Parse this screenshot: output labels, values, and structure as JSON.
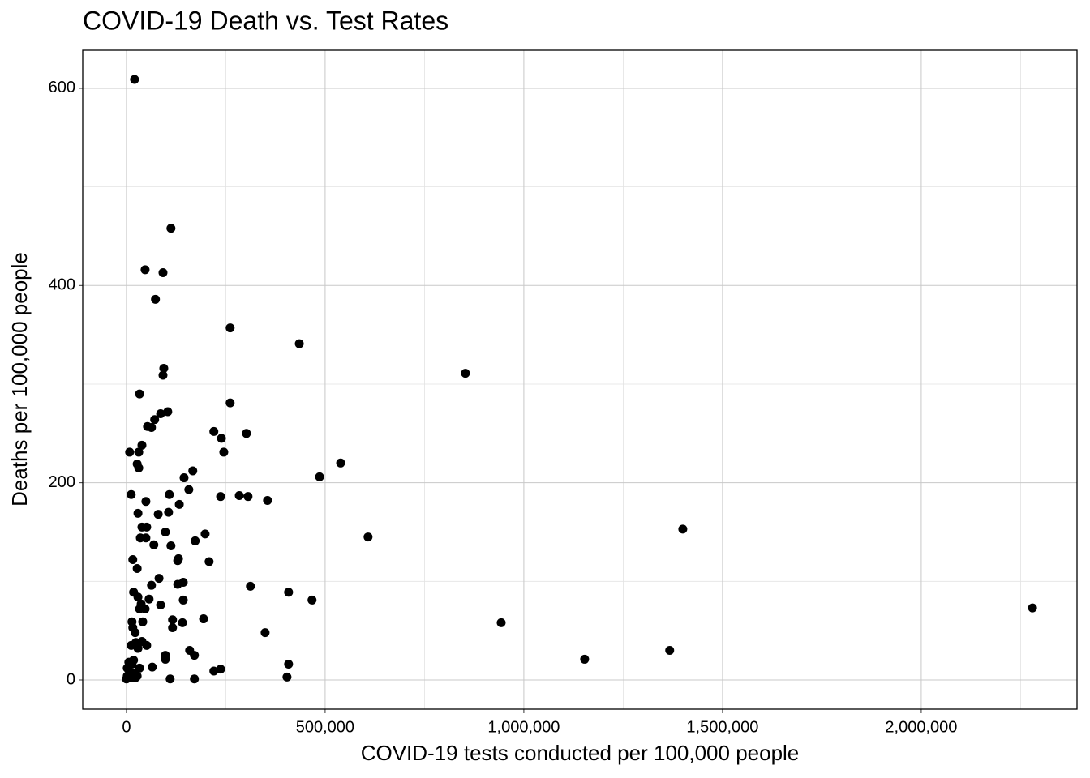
{
  "chart_data": {
    "type": "scatter",
    "title": "COVID-19 Death vs. Test Rates",
    "x_label": "COVID-19 tests conducted per 100,000 people",
    "y_label": "Deaths per 100,000 people",
    "color": "#000000",
    "grid": true,
    "xlim": [
      -110000,
      2392000
    ],
    "ylim": [
      -29.6,
      638.6
    ],
    "xticks": [
      0,
      {
        "value": 500000,
        "label": "500,000"
      },
      {
        "value": 1000000,
        "label": "1,000,000"
      },
      {
        "value": 1500000,
        "label": "1,500,000"
      },
      {
        "value": 2000000,
        "label": "2,000,000"
      }
    ],
    "yticks": [
      0,
      200,
      400,
      600
    ],
    "x": [
      20400,
      112000,
      47000,
      92000,
      73000,
      261000,
      435000,
      853000,
      94000,
      92000,
      33000,
      261000,
      104000,
      86000,
      71000,
      53000,
      63000,
      220000,
      302000,
      239000,
      39000,
      8000,
      31000,
      245000,
      27000,
      31000,
      539000,
      167000,
      486000,
      145000,
      157000,
      12000,
      108000,
      284000,
      306000,
      237000,
      355000,
      49000,
      133000,
      106000,
      29000,
      80000,
      1400000,
      39000,
      51000,
      98000,
      198000,
      608000,
      35000,
      49000,
      173000,
      112000,
      69000,
      131000,
      16000,
      129000,
      208000,
      27000,
      82000,
      143000,
      129000,
      63000,
      312000,
      18000,
      408000,
      29000,
      57000,
      143000,
      467000,
      37000,
      86000,
      33000,
      47000,
      2280000,
      14000,
      41000,
      116000,
      194000,
      943000,
      141000,
      116000,
      16000,
      22000,
      349000,
      12000,
      24000,
      39000,
      51000,
      29000,
      159000,
      1367000,
      171000,
      98000,
      98000,
      1153000,
      408000,
      6000,
      18000,
      65000,
      33000,
      220000,
      237000,
      2000,
      8000,
      20000,
      2000,
      12000,
      0,
      110000,
      171000,
      404000,
      27000,
      14000,
      22000
    ],
    "values": [
      609,
      458,
      416,
      413,
      386,
      357,
      341,
      311,
      316,
      309,
      290,
      281,
      272,
      270,
      264,
      257,
      256,
      252,
      250,
      245,
      238,
      231,
      231,
      231,
      219,
      215,
      220,
      212,
      206,
      205,
      193,
      188,
      188,
      187,
      186,
      186,
      182,
      181,
      178,
      170,
      169,
      168,
      153,
      155,
      155,
      150,
      148,
      145,
      144,
      144,
      141,
      136,
      137,
      123,
      122,
      121,
      120,
      113,
      103,
      99,
      97,
      96,
      95,
      89,
      89,
      84,
      82,
      81,
      81,
      77,
      76,
      72,
      72,
      73,
      59,
      59,
      61,
      62,
      58,
      58,
      53,
      53,
      48,
      48,
      35,
      38,
      39,
      35,
      32,
      30,
      30,
      25,
      25,
      21,
      21,
      16,
      18,
      20,
      13,
      12,
      9,
      11,
      12,
      8,
      7,
      4,
      2,
      1,
      1,
      1,
      3,
      4,
      16,
      2
    ]
  }
}
